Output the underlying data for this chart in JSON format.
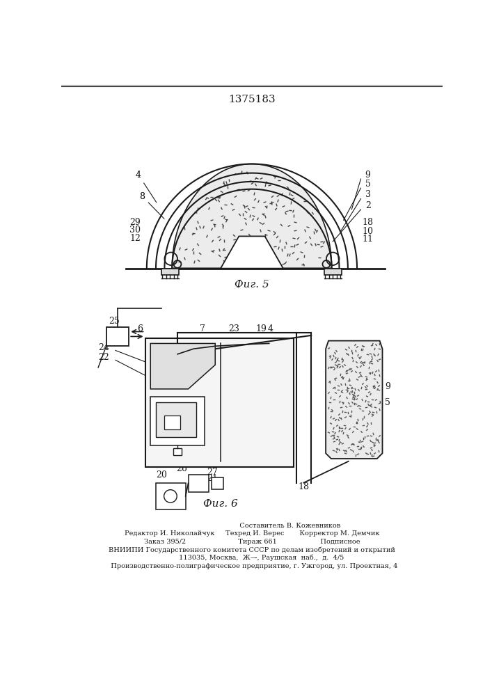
{
  "title": "1375183",
  "fig5_label": "Фиг. 5",
  "fig6_label": "Фиг. 6",
  "bg_color": "#ffffff",
  "line_color": "#1a1a1a",
  "footer_line1": "                                   Составитель В. Кожевников",
  "footer_line2": "Редактор И. Николайчук     Техред И. Верес       Корректор М. Демчик",
  "footer_line3": "Заказ 395/2                        Тираж 661                    Подписное",
  "footer_line4": "ВНИИПИ Государственного комитета СССР по делам изобретений и открытий",
  "footer_line5": "         113035, Москва,  Ж—̵, Раушская  наб.,  д.  4/5",
  "footer_line6": "  Производственно-полиграфическое предприятие, г. Ужгород, ул. Проектная, 4"
}
